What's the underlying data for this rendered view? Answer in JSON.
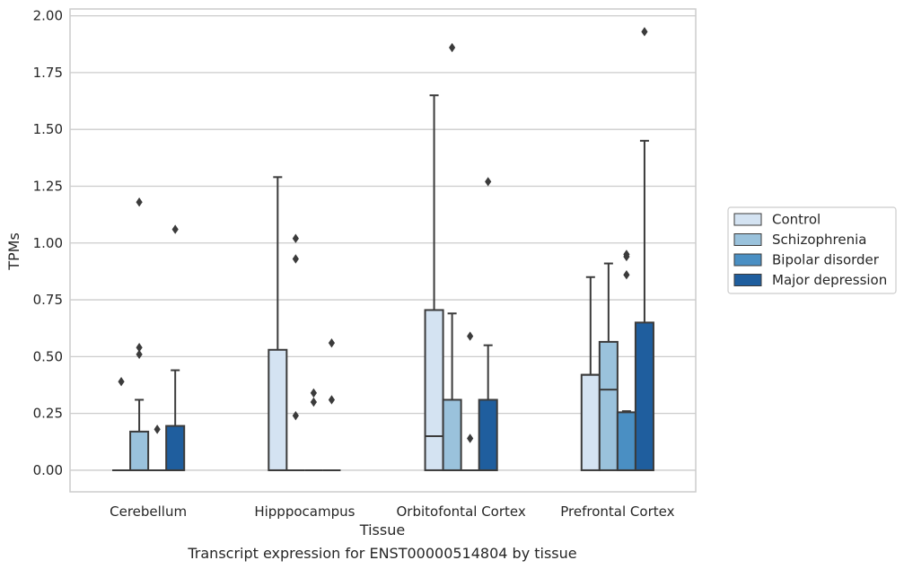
{
  "chart_data": {
    "type": "box",
    "title": "",
    "xlabel": "Tissue",
    "ylabel": "TPMs",
    "caption": "Transcript expression for ENST00000514804 by tissue",
    "ylim": [
      -0.095,
      2.03
    ],
    "yticks": [
      "0.00",
      "0.25",
      "0.50",
      "0.75",
      "1.00",
      "1.25",
      "1.50",
      "1.75",
      "2.00"
    ],
    "grid": "horizontal",
    "legend_position": "right",
    "categories": [
      "Cerebellum",
      "Hipppocampus",
      "Orbitofontal Cortex",
      "Prefrontal Cortex"
    ],
    "series": [
      {
        "name": "Control",
        "color": "#d4e3f2",
        "boxes": [
          {
            "q1": 0,
            "median": 0,
            "q3": 0,
            "whisker_low": 0,
            "whisker_high": 0,
            "outliers": [
              0.39
            ]
          },
          {
            "q1": 0,
            "median": 0,
            "q3": 0.53,
            "whisker_low": 0,
            "whisker_high": 1.29,
            "outliers": []
          },
          {
            "q1": 0,
            "median": 0.15,
            "q3": 0.705,
            "whisker_low": 0,
            "whisker_high": 1.65,
            "outliers": []
          },
          {
            "q1": 0,
            "median": 0.42,
            "q3": 0.42,
            "whisker_low": 0,
            "whisker_high": 0.85,
            "outliers": []
          }
        ]
      },
      {
        "name": "Schizophrenia",
        "color": "#9ac2dc",
        "boxes": [
          {
            "q1": 0,
            "median": 0,
            "q3": 0.17,
            "whisker_low": 0,
            "whisker_high": 0.31,
            "outliers": [
              0.51,
              0.54,
              1.18
            ]
          },
          {
            "q1": 0,
            "median": 0,
            "q3": 0,
            "whisker_low": 0,
            "whisker_high": 0,
            "outliers": [
              0.24,
              0.93,
              1.02
            ]
          },
          {
            "q1": 0,
            "median": 0,
            "q3": 0.31,
            "whisker_low": 0,
            "whisker_high": 0.69,
            "outliers": [
              1.86
            ]
          },
          {
            "q1": 0,
            "median": 0.355,
            "q3": 0.565,
            "whisker_low": 0,
            "whisker_high": 0.91,
            "outliers": []
          }
        ]
      },
      {
        "name": "Bipolar disorder",
        "color": "#4a8fc3",
        "boxes": [
          {
            "q1": 0,
            "median": 0,
            "q3": 0,
            "whisker_low": 0,
            "whisker_high": 0,
            "outliers": [
              0.18
            ]
          },
          {
            "q1": 0,
            "median": 0,
            "q3": 0,
            "whisker_low": 0,
            "whisker_high": 0,
            "outliers": [
              0.3,
              0.34
            ]
          },
          {
            "q1": 0,
            "median": 0,
            "q3": 0,
            "whisker_low": 0,
            "whisker_high": 0,
            "outliers": [
              0.14,
              0.59
            ]
          },
          {
            "q1": 0,
            "median": 0,
            "q3": 0.255,
            "whisker_low": 0,
            "whisker_high": 0.26,
            "outliers": [
              0.86,
              0.94,
              0.95
            ]
          }
        ]
      },
      {
        "name": "Major depression",
        "color": "#1f5e9e",
        "boxes": [
          {
            "q1": 0,
            "median": 0,
            "q3": 0.195,
            "whisker_low": 0,
            "whisker_high": 0.44,
            "outliers": [
              1.06
            ]
          },
          {
            "q1": 0,
            "median": 0,
            "q3": 0,
            "whisker_low": 0,
            "whisker_high": 0,
            "outliers": [
              0.31,
              0.56
            ]
          },
          {
            "q1": 0,
            "median": 0,
            "q3": 0.31,
            "whisker_low": 0,
            "whisker_high": 0.55,
            "outliers": [
              1.27
            ]
          },
          {
            "q1": 0,
            "median": 0,
            "q3": 0.65,
            "whisker_low": 0,
            "whisker_high": 1.45,
            "outliers": [
              1.93
            ]
          }
        ]
      }
    ]
  }
}
